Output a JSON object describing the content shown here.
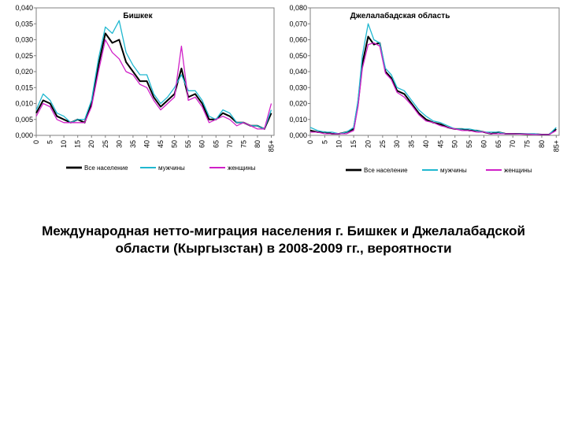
{
  "caption": {
    "line1": "Международная нетто-миграция населения г. Бишкек и Джелалабадской",
    "line2": "области (Кыргызстан) в 2008-2009 гг., вероятности"
  },
  "chart_data": [
    {
      "type": "line",
      "title": "Бишкек",
      "ylim": [
        0,
        0.04
      ],
      "yticks": [
        "0,000",
        "0,005",
        "0,010",
        "0,015",
        "0,020",
        "0,025",
        "0,030",
        "0,035",
        "0,040"
      ],
      "xticks": [
        "0",
        "5",
        "10",
        "15",
        "20",
        "25",
        "30",
        "35",
        "40",
        "45",
        "50",
        "55",
        "60",
        "65",
        "70",
        "75",
        "80",
        "85+"
      ],
      "legend_position": "bottom",
      "x": [
        0,
        2.5,
        5,
        7.5,
        10,
        12.5,
        15,
        17.5,
        20,
        22.5,
        25,
        27.5,
        30,
        32.5,
        35,
        37.5,
        40,
        42.5,
        45,
        47.5,
        50,
        52.5,
        55,
        57.5,
        60,
        62.5,
        65,
        67.5,
        70,
        72.5,
        75,
        77.5,
        80,
        82.5,
        85
      ],
      "series": [
        {
          "name": "Все население",
          "color": "#000000",
          "width": 2,
          "values": [
            0.007,
            0.011,
            0.01,
            0.006,
            0.005,
            0.004,
            0.005,
            0.004,
            0.01,
            0.022,
            0.032,
            0.029,
            0.03,
            0.023,
            0.02,
            0.017,
            0.017,
            0.012,
            0.009,
            0.011,
            0.013,
            0.021,
            0.012,
            0.013,
            0.01,
            0.005,
            0.005,
            0.007,
            0.006,
            0.004,
            0.004,
            0.003,
            0.003,
            0.002,
            0.007
          ]
        },
        {
          "name": "мужчины",
          "color": "#20b8d0",
          "width": 1.3,
          "values": [
            0.008,
            0.013,
            0.011,
            0.007,
            0.006,
            0.004,
            0.005,
            0.005,
            0.011,
            0.024,
            0.034,
            0.032,
            0.036,
            0.026,
            0.022,
            0.019,
            0.019,
            0.013,
            0.01,
            0.012,
            0.015,
            0.019,
            0.014,
            0.014,
            0.011,
            0.006,
            0.005,
            0.008,
            0.007,
            0.004,
            0.004,
            0.003,
            0.003,
            0.002,
            0.008
          ]
        },
        {
          "name": "женщины",
          "color": "#d020c8",
          "width": 1.3,
          "values": [
            0.006,
            0.01,
            0.009,
            0.005,
            0.004,
            0.004,
            0.004,
            0.004,
            0.009,
            0.02,
            0.03,
            0.026,
            0.024,
            0.02,
            0.019,
            0.016,
            0.015,
            0.011,
            0.008,
            0.01,
            0.012,
            0.028,
            0.011,
            0.012,
            0.009,
            0.004,
            0.005,
            0.006,
            0.005,
            0.003,
            0.004,
            0.003,
            0.002,
            0.002,
            0.01
          ]
        }
      ]
    },
    {
      "type": "line",
      "title": "Джелалабадская область",
      "ylim": [
        0,
        0.08
      ],
      "yticks": [
        "0,000",
        "0,010",
        "0,020",
        "0,030",
        "0,040",
        "0,050",
        "0,060",
        "0,070",
        "0,080"
      ],
      "xticks": [
        "0",
        "5",
        "10",
        "15",
        "20",
        "25",
        "30",
        "35",
        "40",
        "45",
        "50",
        "55",
        "60",
        "65",
        "70",
        "75",
        "80",
        "85+"
      ],
      "legend_position": "bottom",
      "x": [
        0,
        2.5,
        5,
        7.5,
        10,
        12.5,
        15,
        16.5,
        18,
        20,
        22,
        24,
        26,
        28,
        30,
        32.5,
        35,
        37.5,
        40,
        42.5,
        45,
        47.5,
        50,
        52.5,
        55,
        57.5,
        60,
        62.5,
        65,
        67.5,
        70,
        72.5,
        75,
        77.5,
        80,
        82.5,
        85
      ],
      "series": [
        {
          "name": "Все население",
          "color": "#000000",
          "width": 2,
          "values": [
            0.003,
            0.002,
            0.002,
            0.001,
            0.001,
            0.002,
            0.004,
            0.02,
            0.045,
            0.062,
            0.057,
            0.058,
            0.04,
            0.036,
            0.028,
            0.026,
            0.02,
            0.014,
            0.01,
            0.008,
            0.007,
            0.005,
            0.004,
            0.004,
            0.003,
            0.003,
            0.002,
            0.001,
            0.002,
            0.001,
            0.001,
            0.001,
            0.0008,
            0.0008,
            0.0005,
            0.0005,
            0.004
          ]
        },
        {
          "name": "мужчины",
          "color": "#20b8d0",
          "width": 1.3,
          "values": [
            0.005,
            0.003,
            0.002,
            0.002,
            0.001,
            0.002,
            0.005,
            0.022,
            0.05,
            0.07,
            0.06,
            0.058,
            0.042,
            0.038,
            0.03,
            0.028,
            0.022,
            0.016,
            0.012,
            0.009,
            0.008,
            0.006,
            0.004,
            0.004,
            0.004,
            0.003,
            0.002,
            0.002,
            0.002,
            0.001,
            0.001,
            0.001,
            0.001,
            0.001,
            0.0005,
            0.0005,
            0.005
          ]
        },
        {
          "name": "женщины",
          "color": "#d020c8",
          "width": 1.3,
          "values": [
            0.002,
            0.002,
            0.001,
            0.001,
            0.001,
            0.001,
            0.003,
            0.018,
            0.042,
            0.057,
            0.058,
            0.056,
            0.039,
            0.035,
            0.027,
            0.024,
            0.019,
            0.013,
            0.009,
            0.008,
            0.006,
            0.005,
            0.004,
            0.003,
            0.003,
            0.002,
            0.002,
            0.001,
            0.001,
            0.001,
            0.001,
            0.0008,
            0.0008,
            0.0005,
            0.0005,
            0.0005,
            0.003
          ]
        }
      ]
    }
  ]
}
